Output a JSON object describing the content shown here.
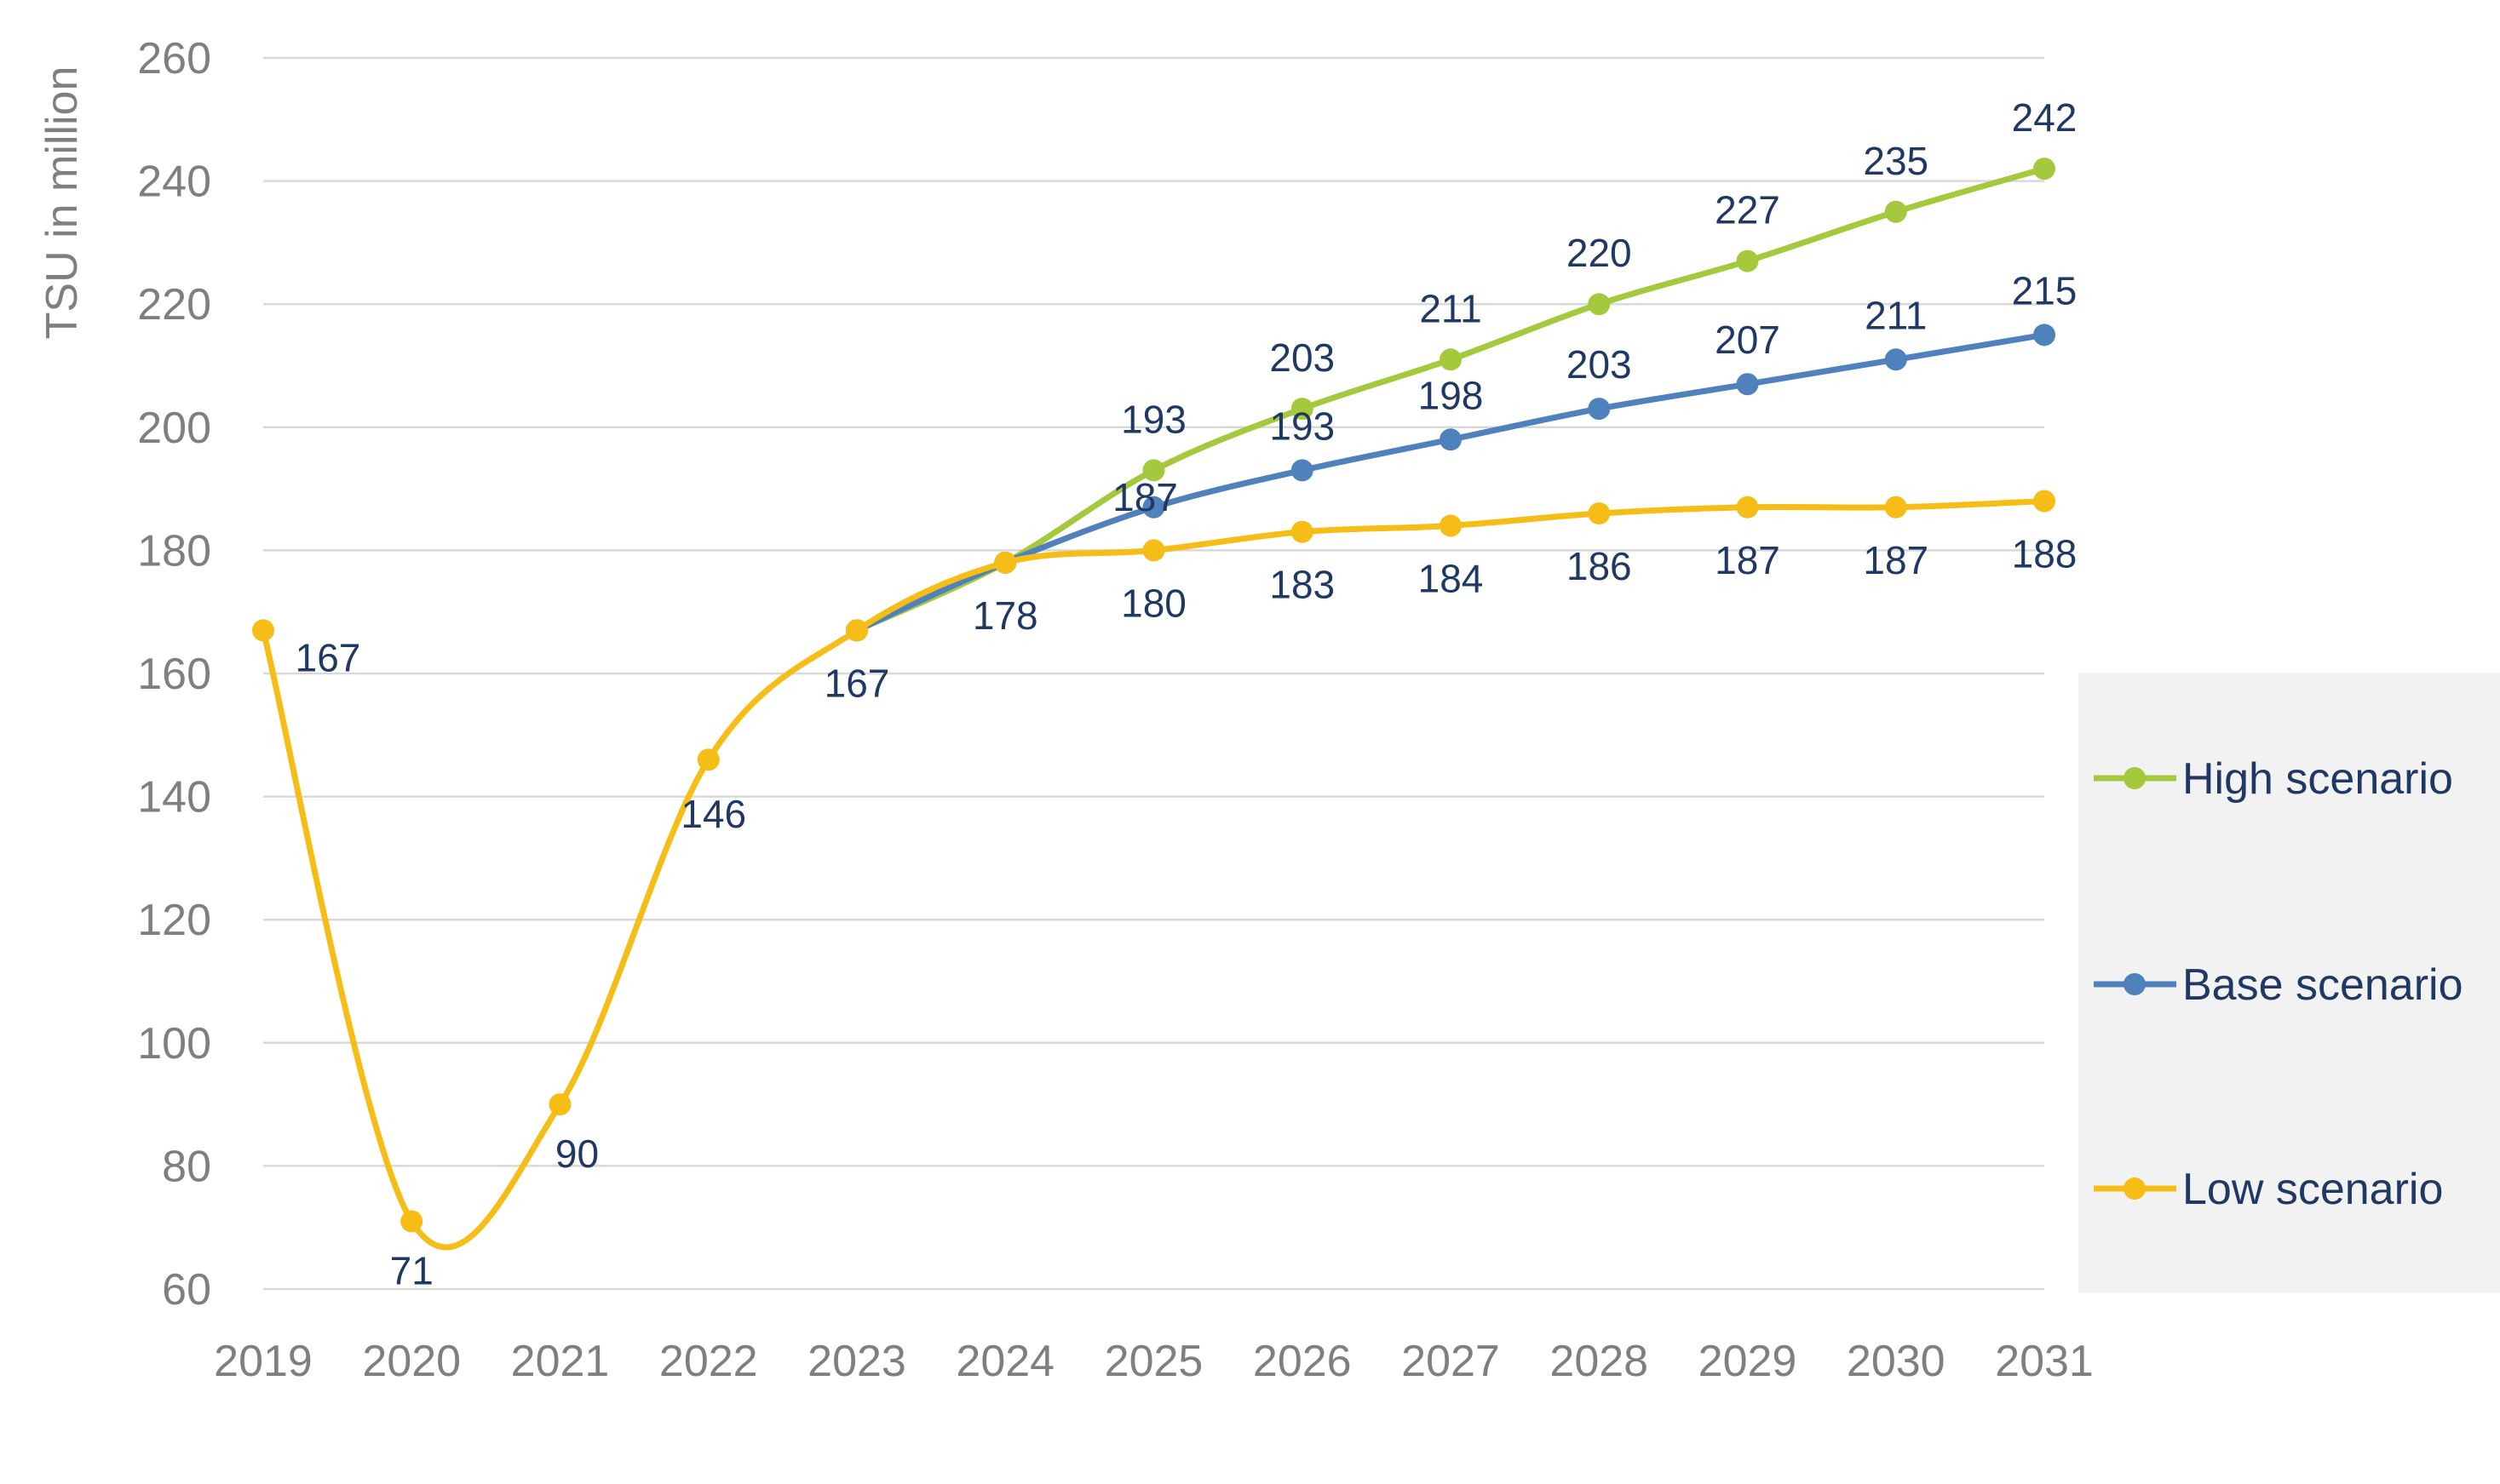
{
  "chart_data": {
    "type": "line",
    "title": "",
    "xlabel": "",
    "ylabel": "TSU in million",
    "ylim": [
      60,
      260
    ],
    "yticks": [
      "60",
      "80",
      "100",
      "120",
      "140",
      "160",
      "180",
      "200",
      "220",
      "240",
      "260"
    ],
    "categories": [
      "2019",
      "2020",
      "2021",
      "2022",
      "2023",
      "2024",
      "2025",
      "2026",
      "2027",
      "2028",
      "2029",
      "2030",
      "2031"
    ],
    "grid": true,
    "legend_position": "right",
    "series": [
      {
        "name": "High scenario",
        "color": "#a4c93d",
        "values": [
          null,
          null,
          null,
          null,
          167,
          178,
          193,
          203,
          211,
          220,
          227,
          235,
          242
        ],
        "labels": [
          null,
          null,
          null,
          null,
          null,
          null,
          "193",
          "203",
          "211",
          "220",
          "227",
          "235",
          "242"
        ]
      },
      {
        "name": "Base scenario",
        "color": "#4f81bd",
        "values": [
          null,
          null,
          null,
          null,
          167,
          178,
          187,
          193,
          198,
          203,
          207,
          211,
          215
        ],
        "labels": [
          null,
          null,
          null,
          null,
          null,
          null,
          "187",
          "193",
          "198",
          "203",
          "207",
          "211",
          "215"
        ]
      },
      {
        "name": "Low scenario",
        "color": "#f6bd16",
        "values": [
          167,
          71,
          90,
          146,
          167,
          178,
          180,
          183,
          184,
          186,
          187,
          187,
          188
        ],
        "labels": [
          "167",
          "71",
          "90",
          "146",
          "167",
          "178",
          "180",
          "183",
          "184",
          "186",
          "187",
          "187",
          "188"
        ]
      }
    ]
  }
}
